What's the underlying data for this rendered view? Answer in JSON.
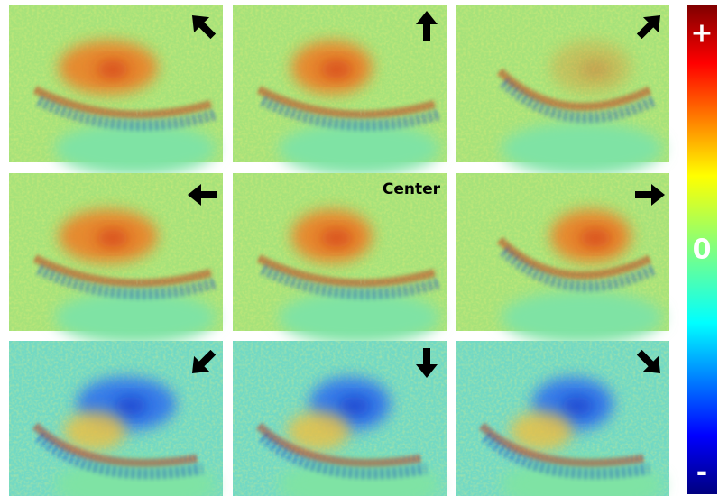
{
  "center_label": "Center",
  "colorbar": {
    "max_label": "+",
    "mid_label": "0",
    "min_label": "-"
  }
}
